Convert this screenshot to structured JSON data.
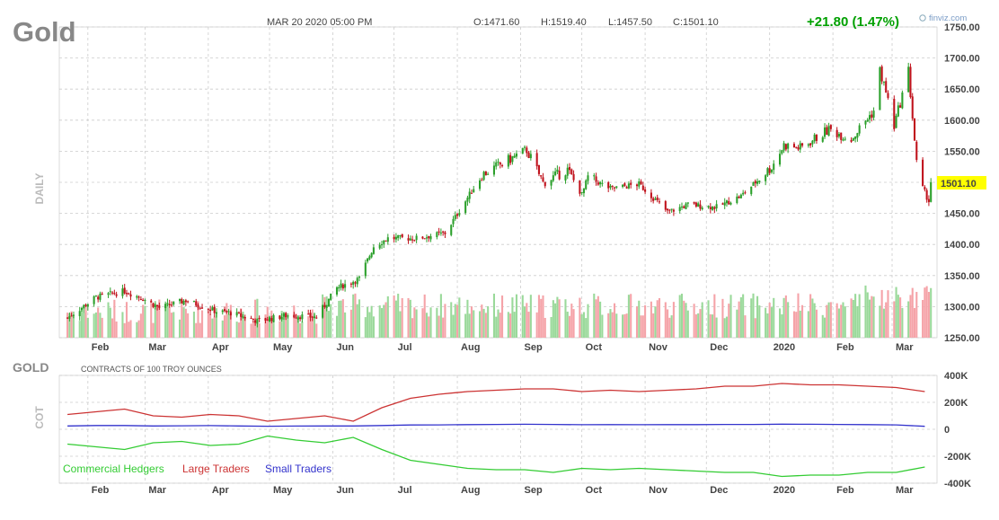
{
  "header": {
    "symbol": "Gold",
    "datetime": "MAR 20 2020 05:00 PM",
    "open": "O:1471.60",
    "high": "H:1519.40",
    "low": "L:1457.50",
    "close": "C:1501.10",
    "change": "+21.80 (1.47%)",
    "brand": "finviz.com",
    "period_label": "DAILY",
    "last_price": "1501.10"
  },
  "cot": {
    "symbol": "GOLD",
    "subtitle": "CONTRACTS OF 100 TROY OUNCES",
    "side_label": "COT"
  },
  "colors": {
    "up": "#2ca02c",
    "down": "#c0121c",
    "up_volume": "#9ad99a",
    "down_volume": "#f5a3a8",
    "commercial": "#33cc33",
    "large": "#cc3333",
    "small": "#3333cc",
    "change": "#00a000",
    "last_price_bg": "#ffff00"
  },
  "chart_data": [
    {
      "type": "candlestick",
      "title": "Gold",
      "timeframe": "daily",
      "x_ticks": [
        "Feb",
        "Mar",
        "Apr",
        "May",
        "Jun",
        "Jul",
        "Aug",
        "Sep",
        "Oct",
        "Nov",
        "Dec",
        "2020",
        "Feb",
        "Mar"
      ],
      "y_ticks": [
        "1250.00",
        "1300.00",
        "1350.00",
        "1400.00",
        "1450.00",
        "1500.00",
        "1550.00",
        "1600.00",
        "1650.00",
        "1700.00",
        "1750.00"
      ],
      "ylim": [
        1250,
        1750
      ],
      "close_path": {
        "dates": [
          "2019-01-22",
          "2019-02-05",
          "2019-02-19",
          "2019-02-28",
          "2019-03-08",
          "2019-03-21",
          "2019-04-05",
          "2019-04-12",
          "2019-04-25",
          "2019-05-10",
          "2019-05-24",
          "2019-06-03",
          "2019-06-14",
          "2019-06-21",
          "2019-06-28",
          "2019-07-12",
          "2019-07-26",
          "2019-08-05",
          "2019-08-13",
          "2019-08-23",
          "2019-09-04",
          "2019-09-12",
          "2019-09-24",
          "2019-10-01",
          "2019-10-04",
          "2019-10-15",
          "2019-10-29",
          "2019-11-05",
          "2019-11-12",
          "2019-11-22",
          "2019-12-06",
          "2019-12-18",
          "2020-01-02",
          "2020-01-08",
          "2020-01-16",
          "2020-01-30",
          "2020-02-10",
          "2020-02-21",
          "2020-02-24",
          "2020-02-27",
          "2020-03-02",
          "2020-03-09",
          "2020-03-13",
          "2020-03-16",
          "2020-03-19",
          "2020-03-20"
        ],
        "close": [
          1282,
          1315,
          1325,
          1313,
          1298,
          1310,
          1292,
          1290,
          1277,
          1286,
          1283,
          1330,
          1345,
          1397,
          1410,
          1410,
          1418,
          1470,
          1512,
          1530,
          1552,
          1500,
          1520,
          1480,
          1508,
          1490,
          1497,
          1475,
          1452,
          1464,
          1460,
          1478,
          1525,
          1560,
          1555,
          1585,
          1570,
          1615,
          1680,
          1645,
          1590,
          1680,
          1530,
          1490,
          1470,
          1501
        ]
      },
      "volume": {
        "label": "volume bars",
        "colors": "green = up day, red = down day"
      }
    },
    {
      "type": "line",
      "title": "GOLD COT",
      "subtitle": "CONTRACTS OF 100 TROY OUNCES",
      "y_ticks": [
        "400K",
        "200K",
        "0",
        "-200K",
        "-400K"
      ],
      "ylim": [
        -400000,
        400000
      ],
      "x": [
        "2019-01-22",
        "2019-02-05",
        "2019-02-19",
        "2019-03-05",
        "2019-03-19",
        "2019-04-02",
        "2019-04-16",
        "2019-04-30",
        "2019-05-14",
        "2019-05-28",
        "2019-06-11",
        "2019-06-25",
        "2019-07-09",
        "2019-07-23",
        "2019-08-06",
        "2019-08-20",
        "2019-09-03",
        "2019-09-17",
        "2019-10-01",
        "2019-10-15",
        "2019-10-29",
        "2019-11-12",
        "2019-11-26",
        "2019-12-10",
        "2019-12-24",
        "2020-01-07",
        "2020-01-21",
        "2020-02-04",
        "2020-02-18",
        "2020-03-03",
        "2020-03-17"
      ],
      "series": [
        {
          "name": "Commercial Hedgers",
          "values": [
            -110000,
            -130000,
            -150000,
            -100000,
            -90000,
            -120000,
            -110000,
            -50000,
            -80000,
            -100000,
            -60000,
            -150000,
            -230000,
            -260000,
            -290000,
            -300000,
            -300000,
            -320000,
            -290000,
            -300000,
            -290000,
            -300000,
            -310000,
            -320000,
            -320000,
            -350000,
            -340000,
            -340000,
            -320000,
            -320000,
            -280000
          ]
        },
        {
          "name": "Large Traders",
          "values": [
            110000,
            130000,
            150000,
            100000,
            90000,
            110000,
            100000,
            60000,
            80000,
            100000,
            60000,
            160000,
            230000,
            260000,
            280000,
            290000,
            300000,
            300000,
            280000,
            290000,
            280000,
            290000,
            300000,
            320000,
            320000,
            340000,
            330000,
            330000,
            320000,
            310000,
            280000
          ]
        },
        {
          "name": "Small Traders",
          "values": [
            25000,
            28000,
            28000,
            25000,
            26000,
            27000,
            25000,
            23000,
            24000,
            25000,
            25000,
            28000,
            32000,
            33000,
            35000,
            36000,
            37000,
            36000,
            34000,
            35000,
            34000,
            35000,
            35000,
            36000,
            36000,
            38000,
            37000,
            36000,
            35000,
            33000,
            22000
          ]
        }
      ]
    }
  ]
}
